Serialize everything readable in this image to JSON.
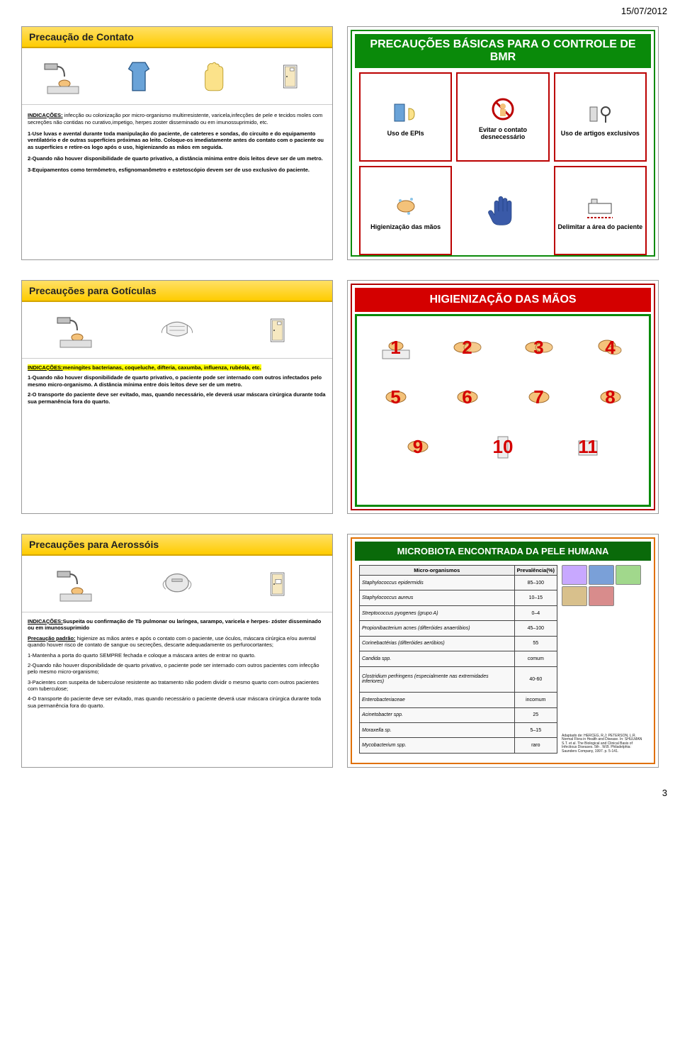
{
  "page": {
    "date": "15/07/2012",
    "number": "3"
  },
  "slide_contato": {
    "title": "Precaução de Contato",
    "indic_label": "INDICAÇÕES:",
    "indic_text": " infecção ou colonização por micro-organismo multirresistente, varicela,infecções de pele e tecidos moles com secreções não contidas no curativo,impetigo, herpes zoster disseminado ou em imunossuprimido, etc.",
    "p1": "1-Use luvas e avental durante toda manipulação do paciente, de cateteres e sondas, do circuito e do equipamento ventilatório e de outras superfícies próximas ao leito. Coloque-os imediatamente antes do contato com o paciente ou as superfícies e retire-os logo após o uso, higienizando as mãos em seguida.",
    "p2": "2-Quando não houver disponibilidade de quarto privativo, a distância mínima entre dois leitos deve ser de um metro.",
    "p3": "3-Equipamentos como termômetro, esfignomanômetro e estetoscópio devem ser de uso exclusivo do paciente."
  },
  "slide_bmr": {
    "title": "PRECAUÇÕES BÁSICAS PARA O CONTROLE DE BMR",
    "cells": [
      {
        "label": "Uso de EPIs"
      },
      {
        "label": "Evitar o contato desnecessário"
      },
      {
        "label": "Uso de artigos exclusivos"
      },
      {
        "label": "Higienização das mãos"
      },
      {
        "label": ""
      },
      {
        "label": "Delimitar a área do paciente"
      }
    ]
  },
  "slide_goticulas": {
    "title": "Precauções para Gotículas",
    "indic_label": "INDICAÇÕES:",
    "indic_text": "meningites bacterianas, coqueluche, difteria, caxumba, influenza, rubéola, etc.",
    "p1": "1-Quando não houver disponibilidade de quarto privativo, o paciente pode ser internado com outros infectados pelo mesmo micro-organismo. A distância mínima entre dois leitos deve ser de um metro.",
    "p2": "2-O transporte do paciente deve ser evitado, mas, quando necessário, ele deverá usar máscara cirúrgica durante toda sua permanência fora do quarto."
  },
  "slide_hig": {
    "title": "HIGIENIZAÇÃO DAS MÃOS",
    "nums": [
      "1",
      "2",
      "3",
      "4",
      "5",
      "6",
      "7",
      "8",
      "9",
      "10",
      "11"
    ]
  },
  "slide_aerossois": {
    "title": "Precauções para Aerossóis",
    "indic_label": "INDICAÇÕES:",
    "indic_text": "Suspeita ou confirmação de Tb pulmonar ou laríngea, sarampo, varicela e herpes- zóster disseminado ou em imunossuprimido",
    "padrao_label": "Precaução padrão:",
    "padrao_text": " higienize as mãos antes e após o contato com o paciente, use óculos, máscara cirúrgica e/ou avental quando houver risco de contato de sangue ou secreções, descarte adequadamente os perfurocortantes;",
    "p1": "1-Mantenha a porta do quarto SEMPRE fechada e coloque a máscara antes de entrar no quarto.",
    "p2": "2-Quando não houver disponibilidade de quarto privativo, o paciente pode ser internado com outros pacientes com infecção pelo mesmo micro-organismo;",
    "p3": "3-Pacientes com suspeita de tuberculose resistente ao tratamento não podem dividir o mesmo quarto com outros pacientes com tuberculose;",
    "p4": "4-O transporte do paciente deve ser evitado, mas quando necessário o paciente  deverá usar máscara cirúrgica durante toda sua permanência fora do quarto."
  },
  "slide_microbiota": {
    "title": "MICROBIOTA ENCONTRADA DA PELE HUMANA",
    "col1": "Micro-organismos",
    "col2": "Prevalência(%)",
    "rows": [
      [
        "Staphylococcus epidermidis",
        "85–100"
      ],
      [
        "Staphylococcus aureus",
        "10–15"
      ],
      [
        "Streptococcus pyogenes (grupo A)",
        "0–4"
      ],
      [
        "Propionibacterium acnes (difteróides anaeróbios)",
        "45–100"
      ],
      [
        "Corinebactérias (difteróides aeróbios)",
        "55"
      ],
      [
        "Candida spp.",
        "comum"
      ],
      [
        "Clostridium perfringens (especialmente nas extremidades inferiores)",
        "40-60"
      ],
      [
        "Enterobacteriaceae",
        "incomum"
      ],
      [
        "Acinetobacter spp.",
        "25"
      ],
      [
        "Moraxella sp.",
        "5–15"
      ],
      [
        "Mycobacterium spp.",
        "raro"
      ]
    ],
    "ref": "Adaptado de: HERCEG, R.J; PETERSON, L.R. Normal Flora in Health and Disease. In: SHULMAN S.T. et al. The Biological and Clinical Basis of Infectious Diseases. 5th . W.B. Philadelphia: Saunders Company, 1997. p. 5-141."
  }
}
